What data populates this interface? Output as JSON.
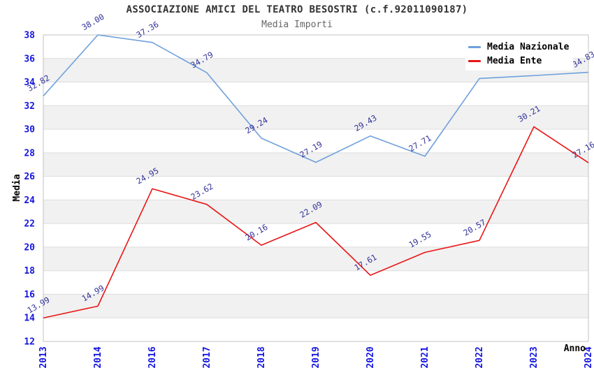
{
  "chart_data": {
    "type": "line",
    "title": "ASSOCIAZIONE AMICI DEL TEATRO BESOSTRI (c.f.92011090187)",
    "subtitle": "Media Importi",
    "xlabel": "Anno",
    "ylabel": "Media",
    "categories": [
      "2013",
      "2014",
      "2016",
      "2017",
      "2018",
      "2019",
      "2020",
      "2021",
      "2022",
      "2023",
      "2024"
    ],
    "series": [
      {
        "name": "Media Nazionale",
        "color": "#6fa0dc",
        "values": [
          32.82,
          38.0,
          37.36,
          34.79,
          29.24,
          27.19,
          29.43,
          27.71,
          34.3,
          34.55,
          34.83
        ],
        "labels": [
          "32.82",
          "38.00",
          "37.36",
          "34.79",
          "29.24",
          "27.19",
          "29.43",
          "27.71",
          null,
          null,
          "34.83"
        ]
      },
      {
        "name": "Media Ente",
        "color": "#ea1515",
        "values": [
          13.99,
          14.99,
          24.95,
          23.62,
          20.16,
          22.09,
          17.61,
          19.55,
          20.57,
          30.21,
          27.16
        ],
        "labels": [
          "13.99",
          "14.99",
          "24.95",
          "23.62",
          "20.16",
          "22.09",
          "17.61",
          "19.55",
          "20.57",
          "30.21",
          "27.16"
        ]
      }
    ],
    "ylim": [
      12,
      38
    ],
    "ytick_step": 2,
    "y_ticks": [
      38,
      36,
      34,
      32,
      30,
      28,
      26,
      24,
      22,
      20,
      18,
      16,
      14,
      12
    ],
    "legend_position": "top-right",
    "grid": "horizontal gridlines with alternating shaded bands",
    "notes": "labels for Media Nazionale 2022 and 2023 hidden behind legend"
  },
  "colors": {
    "axis_tick": "#1515e0",
    "data_label": "#333399",
    "band": "#f1f1f1",
    "gridline": "#dddddd",
    "border": "#c3c3c3",
    "title": "#333333",
    "subtitle": "#666666"
  }
}
